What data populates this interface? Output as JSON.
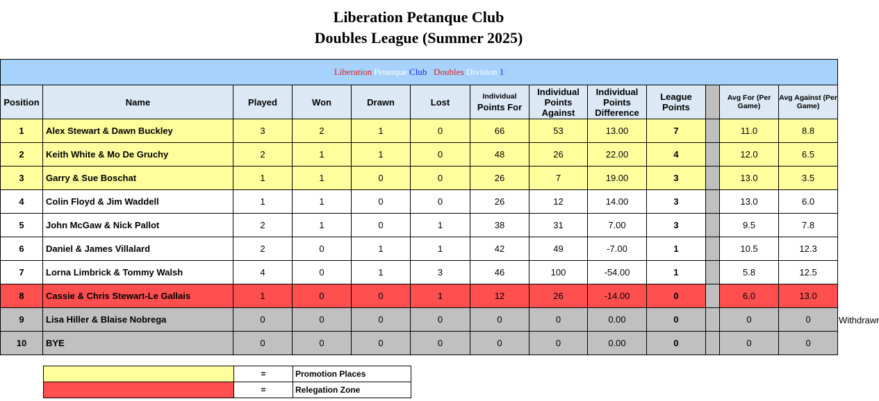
{
  "header": {
    "line1": "Liberation Petanque Club",
    "line2": "Doubles League (Summer 2025)"
  },
  "banner": {
    "word1": "Liberation",
    "word2": "Petanque",
    "word3": "Club",
    "word4": "Doubles",
    "word5": "Division",
    "word6": "1",
    "colors": {
      "red": "#e8181e",
      "white": "#ffffff",
      "blue": "#1c1cf4",
      "background": "#a6d2fb"
    }
  },
  "columns": {
    "position": "Position",
    "name": "Name",
    "played": "Played",
    "won": "Won",
    "drawn": "Drawn",
    "lost": "Lost",
    "points_for_a": "Individual",
    "points_for_b": "Points For",
    "points_against": "Individual Points Against",
    "points_diff": "Individual Points Difference",
    "league_points": "League Points",
    "avg_for": "Avg For (Per Game)",
    "avg_against": "Avg Against (Per Game)"
  },
  "rows": [
    {
      "pos": "1",
      "name": "Alex Stewart & Dawn Buckley",
      "played": "3",
      "won": "2",
      "drawn": "1",
      "lost": "0",
      "pf": "66",
      "pa": "53",
      "pd": "13.00",
      "lp": "7",
      "af": "11.0",
      "aa": "8.8",
      "zone": "promotion"
    },
    {
      "pos": "2",
      "name": "Keith White & Mo De Gruchy",
      "played": "2",
      "won": "1",
      "drawn": "1",
      "lost": "0",
      "pf": "48",
      "pa": "26",
      "pd": "22.00",
      "lp": "4",
      "af": "12.0",
      "aa": "6.5",
      "zone": "promotion"
    },
    {
      "pos": "3",
      "name": "Garry & Sue Boschat",
      "played": "1",
      "won": "1",
      "drawn": "0",
      "lost": "0",
      "pf": "26",
      "pa": "7",
      "pd": "19.00",
      "lp": "3",
      "af": "13.0",
      "aa": "3.5",
      "zone": "promotion"
    },
    {
      "pos": "4",
      "name": "Colin Floyd & Jim Waddell",
      "played": "1",
      "won": "1",
      "drawn": "0",
      "lost": "0",
      "pf": "26",
      "pa": "12",
      "pd": "14.00",
      "lp": "3",
      "af": "13.0",
      "aa": "6.0",
      "zone": "none"
    },
    {
      "pos": "5",
      "name": "John McGaw & Nick Pallot",
      "played": "2",
      "won": "1",
      "drawn": "0",
      "lost": "1",
      "pf": "38",
      "pa": "31",
      "pd": "7.00",
      "lp": "3",
      "af": "9.5",
      "aa": "7.8",
      "zone": "none"
    },
    {
      "pos": "6",
      "name": "Daniel & James Villalard",
      "played": "2",
      "won": "0",
      "drawn": "1",
      "lost": "1",
      "pf": "42",
      "pa": "49",
      "pd": "-7.00",
      "lp": "1",
      "af": "10.5",
      "aa": "12.3",
      "zone": "none"
    },
    {
      "pos": "7",
      "name": "Lorna Limbrick & Tommy Walsh",
      "played": "4",
      "won": "0",
      "drawn": "1",
      "lost": "3",
      "pf": "46",
      "pa": "100",
      "pd": "-54.00",
      "lp": "1",
      "af": "5.8",
      "aa": "12.5",
      "zone": "none"
    },
    {
      "pos": "8",
      "name": "Cassie & Chris Stewart-Le Gallais",
      "played": "1",
      "won": "0",
      "drawn": "0",
      "lost": "1",
      "pf": "12",
      "pa": "26",
      "pd": "-14.00",
      "lp": "0",
      "af": "6.0",
      "aa": "13.0",
      "zone": "relegation"
    },
    {
      "pos": "9",
      "name": "Lisa Hiller & Blaise Nobrega",
      "played": "0",
      "won": "0",
      "drawn": "0",
      "lost": "0",
      "pf": "0",
      "pa": "0",
      "pd": "0.00",
      "lp": "0",
      "af": "0",
      "aa": "0",
      "zone": "withdrawn"
    },
    {
      "pos": "10",
      "name": "BYE",
      "played": "0",
      "won": "0",
      "drawn": "0",
      "lost": "0",
      "pf": "0",
      "pa": "0",
      "pd": "0.00",
      "lp": "0",
      "af": "0",
      "aa": "0",
      "zone": "withdrawn"
    }
  ],
  "note_withdrawn": "Withdrawn",
  "key": {
    "equals": "=",
    "promotion_label": "Promotion Places",
    "relegation_label": "Relegation  Zone",
    "promotion_color": "#ffff9e",
    "relegation_color": "#ff4f4f",
    "withdrawn_color": "#c0c0c0"
  }
}
